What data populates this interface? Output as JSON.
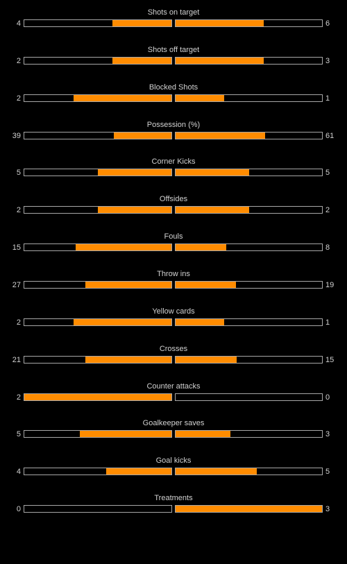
{
  "colors": {
    "background": "#000000",
    "fill": "#ff8c00",
    "bar_border": "#a8a8a8",
    "text": "#d2d2d2"
  },
  "stats": [
    {
      "label": "Shots on target",
      "home": "4",
      "away": "6",
      "home_fraction": 0.4,
      "away_fraction": 0.6
    },
    {
      "label": "Shots off target",
      "home": "2",
      "away": "3",
      "home_fraction": 0.4,
      "away_fraction": 0.6
    },
    {
      "label": "Blocked Shots",
      "home": "2",
      "away": "1",
      "home_fraction": 0.667,
      "away_fraction": 0.333
    },
    {
      "label": "Possession (%)",
      "home": "39",
      "away": "61",
      "home_fraction": 0.39,
      "away_fraction": 0.61
    },
    {
      "label": "Corner Kicks",
      "home": "5",
      "away": "5",
      "home_fraction": 0.5,
      "away_fraction": 0.5
    },
    {
      "label": "Offsides",
      "home": "2",
      "away": "2",
      "home_fraction": 0.5,
      "away_fraction": 0.5
    },
    {
      "label": "Fouls",
      "home": "15",
      "away": "8",
      "home_fraction": 0.652,
      "away_fraction": 0.348
    },
    {
      "label": "Throw ins",
      "home": "27",
      "away": "19",
      "home_fraction": 0.587,
      "away_fraction": 0.413
    },
    {
      "label": "Yellow cards",
      "home": "2",
      "away": "1",
      "home_fraction": 0.667,
      "away_fraction": 0.333
    },
    {
      "label": "Crosses",
      "home": "21",
      "away": "15",
      "home_fraction": 0.583,
      "away_fraction": 0.417
    },
    {
      "label": "Counter attacks",
      "home": "2",
      "away": "0",
      "home_fraction": 1.0,
      "away_fraction": 0.0
    },
    {
      "label": "Goalkeeper saves",
      "home": "5",
      "away": "3",
      "home_fraction": 0.625,
      "away_fraction": 0.375
    },
    {
      "label": "Goal kicks",
      "home": "4",
      "away": "5",
      "home_fraction": 0.444,
      "away_fraction": 0.556
    },
    {
      "label": "Treatments",
      "home": "0",
      "away": "3",
      "home_fraction": 0.0,
      "away_fraction": 1.0
    }
  ]
}
